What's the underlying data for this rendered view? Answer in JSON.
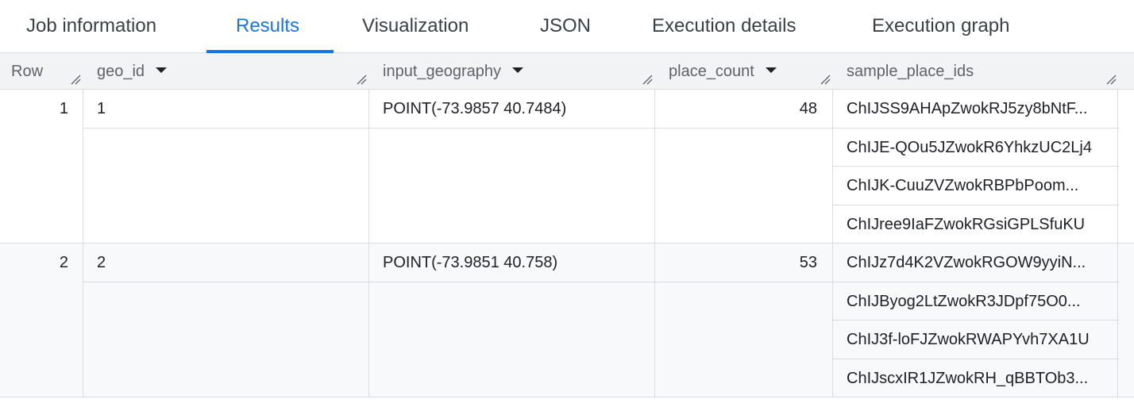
{
  "tabs": [
    {
      "label": "Job information",
      "active": false
    },
    {
      "label": "Results",
      "active": true
    },
    {
      "label": "Visualization",
      "active": false
    },
    {
      "label": "JSON",
      "active": false
    },
    {
      "label": "Execution details",
      "active": false
    },
    {
      "label": "Execution graph",
      "active": false
    }
  ],
  "accent_color": "#1a73e8",
  "columns": [
    "Row",
    "geo_id",
    "input_geography",
    "place_count",
    "sample_place_ids"
  ],
  "rows": [
    {
      "row": "1",
      "geo_id": "1",
      "input_geography": "POINT(-73.9857 40.7484)",
      "place_count": "48",
      "sample_place_ids": [
        "ChIJSS9AHApZwokRJ5zy8bNtF...",
        "ChIJE-QOu5JZwokR6YhkzUC2Lj4",
        "ChIJK-CuuZVZwokRBPbPoom...",
        "ChIJree9IaFZwokRGsiGPLSfuKU"
      ]
    },
    {
      "row": "2",
      "geo_id": "2",
      "input_geography": "POINT(-73.9851 40.758)",
      "place_count": "53",
      "sample_place_ids": [
        "ChIJz7d4K2VZwokRGOW9yyiN...",
        "ChIJByog2LtZwokR3JDpf75O0...",
        "ChIJ3f-loFJZwokRWAPYvh7XA1U",
        "ChIJscxIR1JZwokRH_qBBTOb3..."
      ]
    }
  ]
}
